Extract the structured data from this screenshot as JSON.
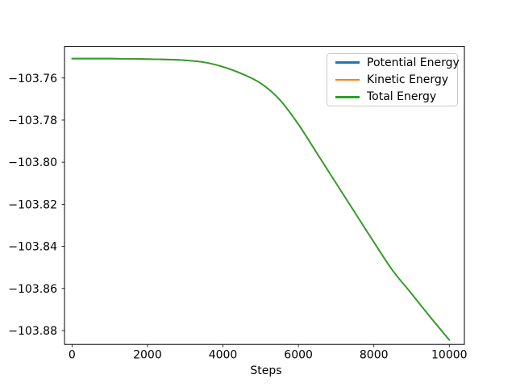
{
  "figure": {
    "background": "#ffffff",
    "text_color": "#000000",
    "frame_color": "#000000"
  },
  "chart_data": {
    "type": "line",
    "title": "",
    "xlabel": "Steps",
    "ylabel": "",
    "grid": false,
    "xlim": [
      -200,
      10400
    ],
    "ylim": [
      -103.8866,
      -103.745
    ],
    "x_ticks": [
      0,
      2000,
      4000,
      6000,
      8000,
      10000
    ],
    "y_ticks": [
      -103.76,
      -103.78,
      -103.8,
      -103.82,
      -103.84,
      -103.86,
      -103.88
    ],
    "legend_position": "upper right",
    "x": [
      0,
      500,
      1000,
      1500,
      2000,
      2500,
      3000,
      3500,
      4000,
      4500,
      5000,
      5500,
      6000,
      6500,
      7000,
      7500,
      8000,
      8500,
      9000,
      9500,
      10000
    ],
    "series": [
      {
        "name": "Potential Energy",
        "color": "#1f77b4",
        "values": [
          -103.7508,
          -103.7508,
          -103.7508,
          -103.7509,
          -103.751,
          -103.7512,
          -103.7516,
          -103.7525,
          -103.7547,
          -103.758,
          -103.7625,
          -103.7702,
          -103.782,
          -103.796,
          -103.81,
          -103.824,
          -103.838,
          -103.8515,
          -103.8625,
          -103.8737,
          -103.8845
        ]
      },
      {
        "name": "Kinetic Energy",
        "color": "#ff7f0e",
        "values": [
          -103.7508,
          -103.7508,
          -103.7508,
          -103.7509,
          -103.751,
          -103.7512,
          -103.7516,
          -103.7525,
          -103.7547,
          -103.758,
          -103.7625,
          -103.7702,
          -103.782,
          -103.796,
          -103.81,
          -103.824,
          -103.838,
          -103.8515,
          -103.8625,
          -103.8737,
          -103.8845
        ]
      },
      {
        "name": "Total Energy",
        "color": "#2ca02c",
        "values": [
          -103.7508,
          -103.7508,
          -103.7508,
          -103.7509,
          -103.751,
          -103.7512,
          -103.7516,
          -103.7525,
          -103.7547,
          -103.758,
          -103.7625,
          -103.7702,
          -103.782,
          -103.796,
          -103.81,
          -103.824,
          -103.838,
          -103.8515,
          -103.8625,
          -103.8737,
          -103.8845
        ]
      }
    ]
  },
  "legend": {
    "items": [
      {
        "label": "Potential Energy",
        "color": "#1f77b4"
      },
      {
        "label": "Kinetic Energy",
        "color": "#ff7f0e"
      },
      {
        "label": "Total Energy",
        "color": "#2ca02c"
      }
    ]
  }
}
